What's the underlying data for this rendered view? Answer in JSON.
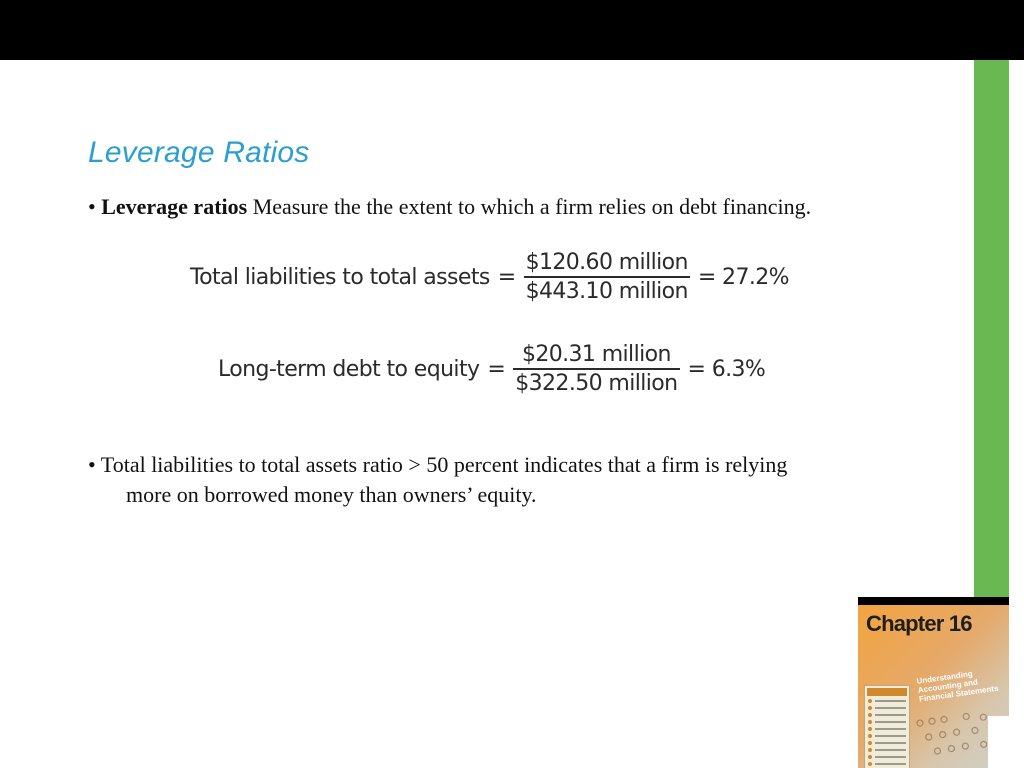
{
  "slide": {
    "title": "Leverage Ratios",
    "bullet1": {
      "marker": "•",
      "term": "Leverage ratios",
      "text": " Measure the the extent to which a firm relies on debt financing."
    },
    "equations": [
      {
        "label": "Total liabilities to total assets",
        "equals": "=",
        "numerator": "$120.60 million",
        "denominator": "$443.10 million",
        "result": "= 27.2%"
      },
      {
        "label": "Long-term debt to equity",
        "equals": "=",
        "numerator": "$20.31 million",
        "denominator": "$322.50 million",
        "result": "= 6.3%"
      }
    ],
    "bullet2": {
      "line1": "• Total liabilities to total assets ratio > 50 percent indicates that a firm is relying",
      "line2": "more on borrowed money than owners’ equity."
    }
  },
  "cover": {
    "title": "Chapter 16",
    "subtitle": "Understanding Accounting and Financial Statements"
  },
  "colors": {
    "title": "#2a9fd0",
    "top_bar": "#000000",
    "side_bar": "#6ab851"
  }
}
